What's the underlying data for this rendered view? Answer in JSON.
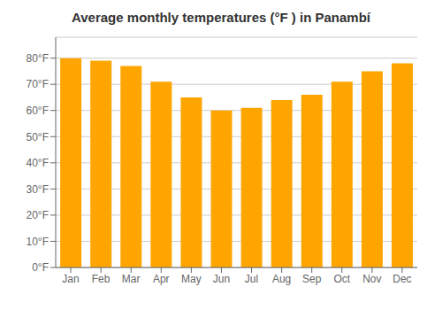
{
  "chart_data": {
    "type": "bar",
    "title": "Average monthly temperatures (°F ) in Panambí",
    "categories": [
      "Jan",
      "Feb",
      "Mar",
      "Apr",
      "May",
      "Jun",
      "Jul",
      "Aug",
      "Sep",
      "Oct",
      "Nov",
      "Dec"
    ],
    "values": [
      80,
      79,
      77,
      71,
      65,
      60,
      61,
      64,
      66,
      71,
      75,
      78
    ],
    "color": "#FFA500",
    "ylim": [
      0,
      88
    ],
    "yticks": [
      {
        "value": 0,
        "label": "0°F"
      },
      {
        "value": 10,
        "label": "10°F"
      },
      {
        "value": 20,
        "label": "20°F"
      },
      {
        "value": 30,
        "label": "30°F"
      },
      {
        "value": 40,
        "label": "40°F"
      },
      {
        "value": 50,
        "label": "50°F"
      },
      {
        "value": 60,
        "label": "60°F"
      },
      {
        "value": 70,
        "label": "70°F"
      },
      {
        "value": 80,
        "label": "80°F"
      }
    ],
    "grid": true
  }
}
